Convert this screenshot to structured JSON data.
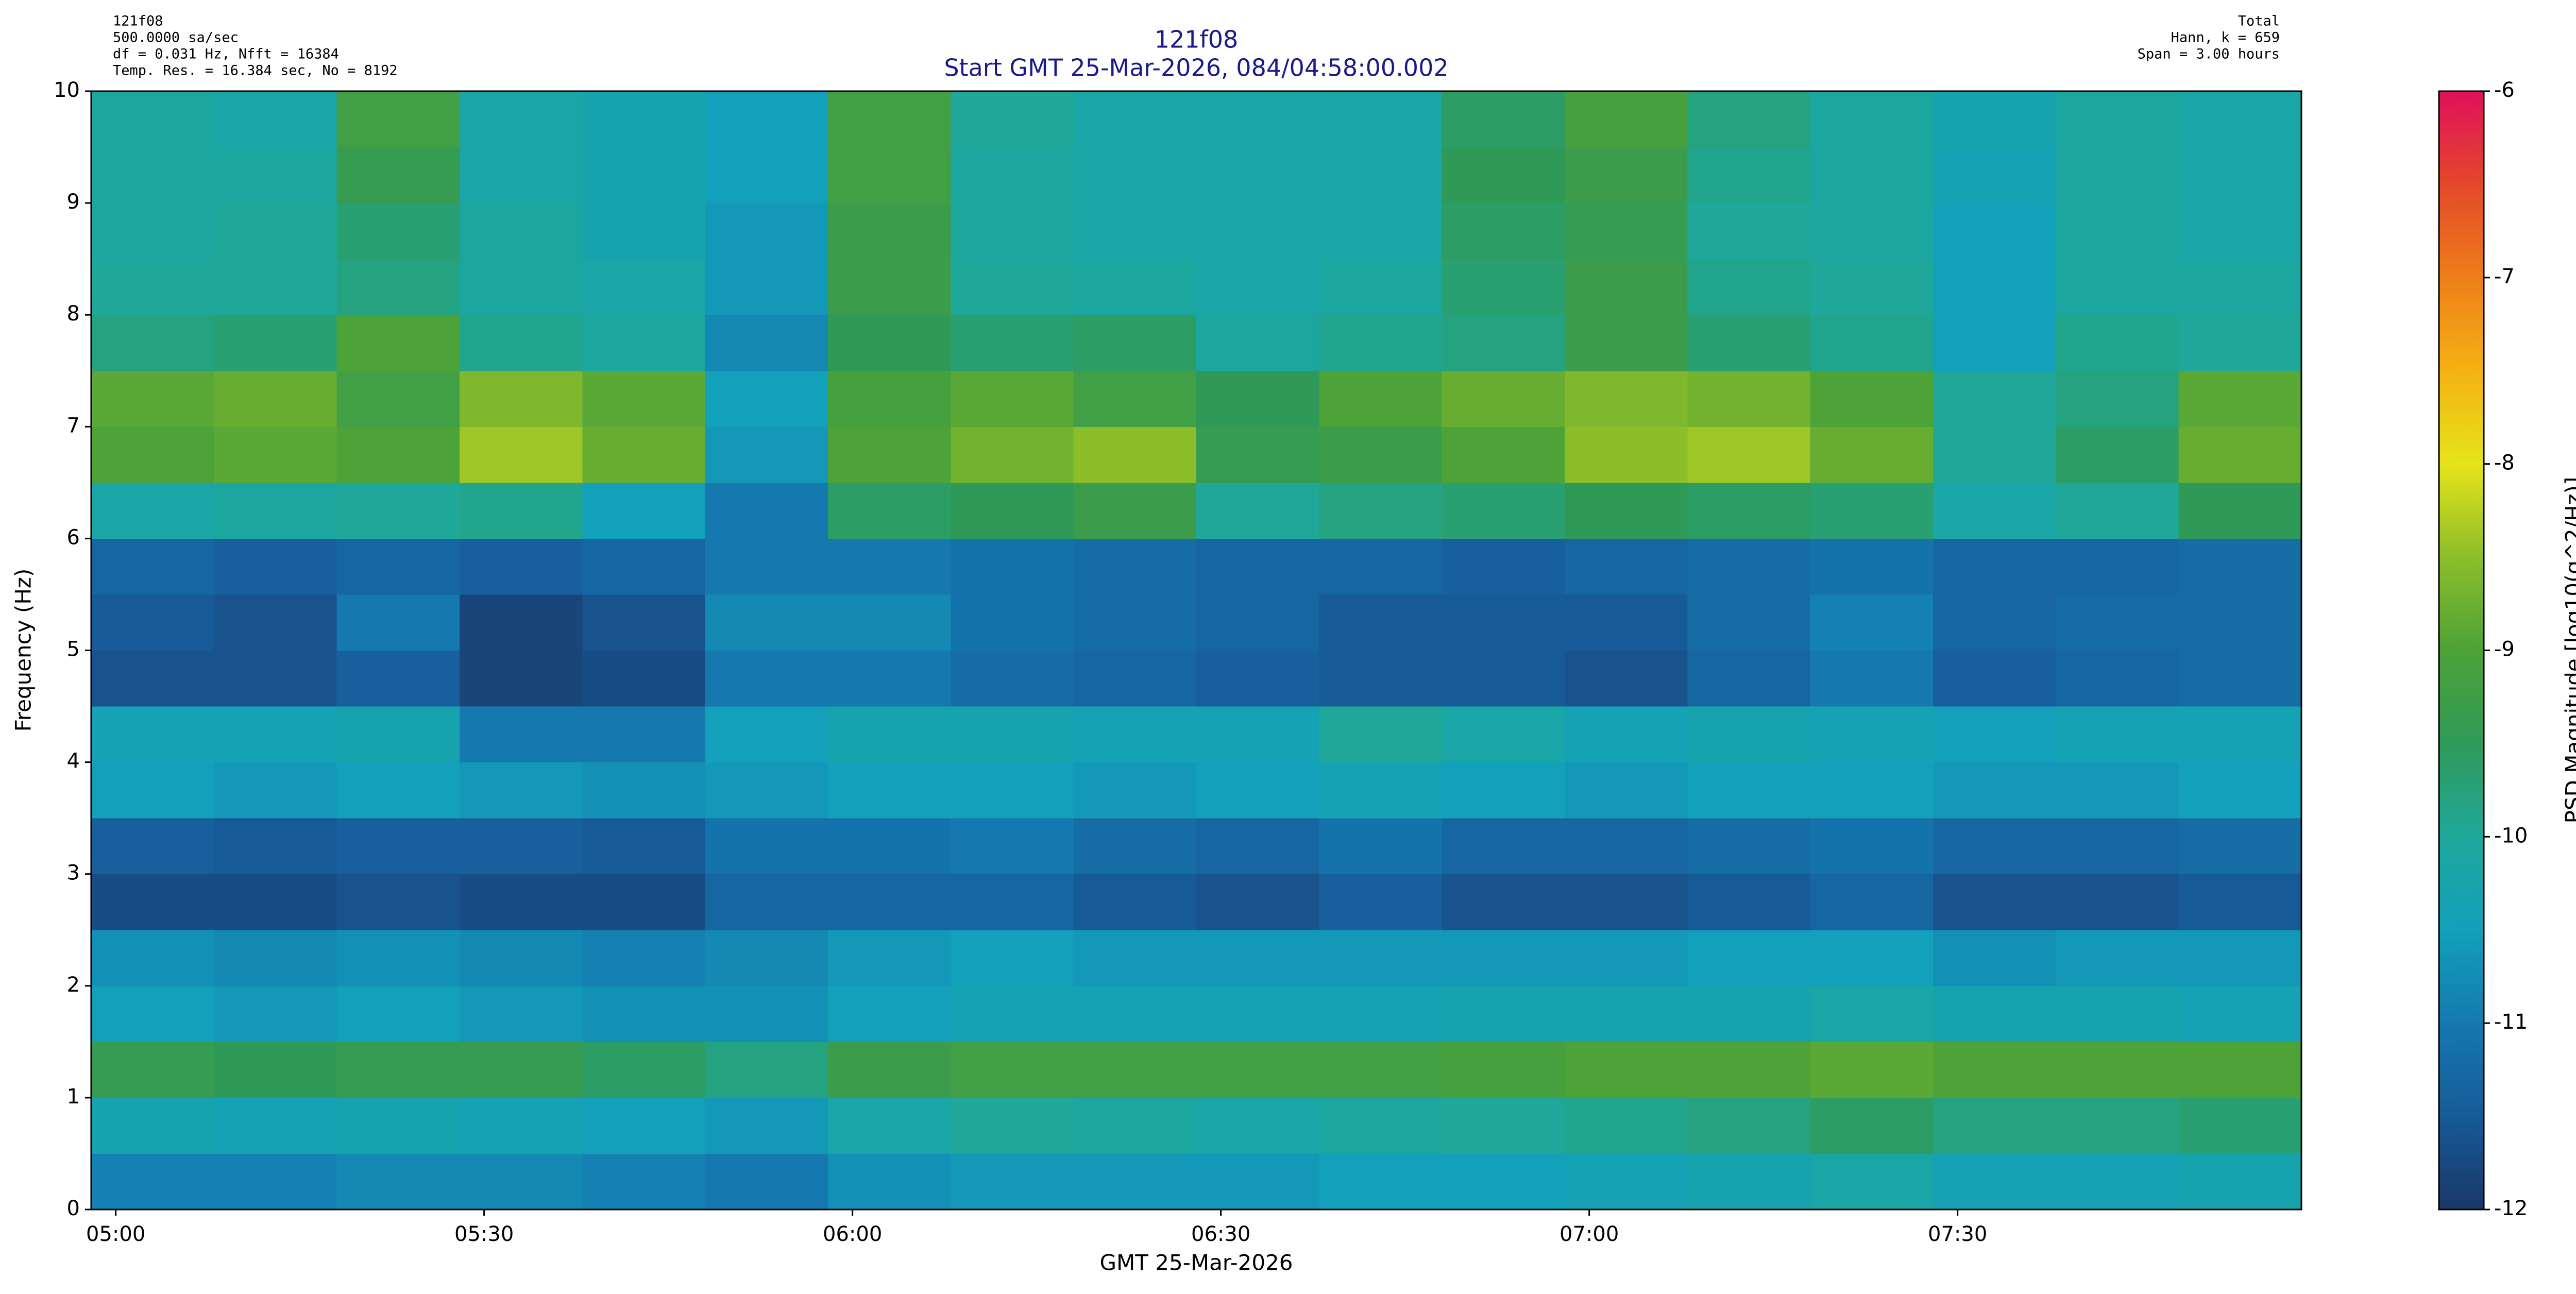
{
  "chart_data": {
    "type": "heatmap",
    "info_left": [
      "121f08",
      "500.0000 sa/sec",
      "df = 0.031 Hz,  Nfft = 16384",
      "Temp. Res. = 16.384 sec, No = 8192"
    ],
    "info_right": [
      "Total",
      "Hann, k = 659",
      "Span = 3.00 hours"
    ],
    "title": "121f08",
    "subtitle": "Start GMT 25-Mar-2026, 084/04:58:00.002",
    "xlabel": "GMT 25-Mar-2026",
    "ylabel": "Frequency (Hz)",
    "colorbar_label": "PSD Magnitude [log10(g^2/Hz)]",
    "xlim": [
      298,
      478
    ],
    "xticks": [
      {
        "value": 300,
        "label": "05:00"
      },
      {
        "value": 330,
        "label": "05:30"
      },
      {
        "value": 360,
        "label": "06:00"
      },
      {
        "value": 390,
        "label": "06:30"
      },
      {
        "value": 420,
        "label": "07:00"
      },
      {
        "value": 450,
        "label": "07:30"
      }
    ],
    "ylim": [
      0,
      10
    ],
    "yticks": [
      0,
      1,
      2,
      3,
      4,
      5,
      6,
      7,
      8,
      9,
      10
    ],
    "zlim": [
      -12,
      -6
    ],
    "zticks": [
      -12,
      -11,
      -10,
      -9,
      -8,
      -7,
      -6
    ],
    "colormap": [
      "#1a3768",
      "#175a98",
      "#1579b0",
      "#12a0ba",
      "#1fa89a",
      "#2f9a58",
      "#4da238",
      "#8cbe2a",
      "#e6e41a",
      "#f4b212",
      "#ee7e1a",
      "#e4482a",
      "#e0105c"
    ],
    "xbins": [
      298,
      308,
      318,
      328,
      338,
      348,
      358,
      368,
      378,
      388,
      398,
      408,
      418,
      428,
      438,
      448,
      458,
      468,
      478
    ],
    "ybins": [
      0,
      0.5,
      1,
      1.5,
      2,
      2.5,
      3,
      3.5,
      4,
      4.5,
      5,
      5.5,
      6,
      6.5,
      7,
      7.5,
      8,
      8.5,
      9,
      9.5,
      10
    ],
    "z": [
      [
        -10.9,
        -10.9,
        -10.8,
        -10.8,
        -10.9,
        -11.0,
        -10.7,
        -10.6,
        -10.6,
        -10.6,
        -10.5,
        -10.5,
        -10.4,
        -10.3,
        -10.2,
        -10.4,
        -10.4,
        -10.3
      ],
      [
        -10.3,
        -10.4,
        -10.3,
        -10.4,
        -10.5,
        -10.6,
        -10.2,
        -10.0,
        -10.1,
        -10.2,
        -10.1,
        -10.0,
        -9.9,
        -9.8,
        -9.6,
        -9.8,
        -9.8,
        -9.7
      ],
      [
        -9.4,
        -9.5,
        -9.4,
        -9.4,
        -9.6,
        -9.8,
        -9.3,
        -9.2,
        -9.2,
        -9.2,
        -9.2,
        -9.1,
        -9.0,
        -9.0,
        -8.9,
        -9.0,
        -9.0,
        -9.0
      ],
      [
        -10.5,
        -10.6,
        -10.5,
        -10.6,
        -10.7,
        -10.7,
        -10.5,
        -10.4,
        -10.4,
        -10.4,
        -10.4,
        -10.3,
        -10.3,
        -10.3,
        -10.2,
        -10.3,
        -10.3,
        -10.4
      ],
      [
        -10.7,
        -10.8,
        -10.7,
        -10.8,
        -10.9,
        -10.8,
        -10.6,
        -10.5,
        -10.6,
        -10.6,
        -10.6,
        -10.6,
        -10.6,
        -10.5,
        -10.5,
        -10.7,
        -10.6,
        -10.6
      ],
      [
        -11.7,
        -11.7,
        -11.6,
        -11.7,
        -11.7,
        -11.3,
        -11.3,
        -11.3,
        -11.5,
        -11.6,
        -11.4,
        -11.6,
        -11.6,
        -11.5,
        -11.3,
        -11.6,
        -11.6,
        -11.5
      ],
      [
        -11.4,
        -11.5,
        -11.4,
        -11.4,
        -11.5,
        -11.1,
        -11.1,
        -11.0,
        -11.2,
        -11.3,
        -11.1,
        -11.3,
        -11.3,
        -11.2,
        -11.1,
        -11.3,
        -11.3,
        -11.2
      ],
      [
        -10.5,
        -10.6,
        -10.5,
        -10.6,
        -10.7,
        -10.6,
        -10.5,
        -10.5,
        -10.6,
        -10.5,
        -10.4,
        -10.5,
        -10.6,
        -10.5,
        -10.5,
        -10.6,
        -10.6,
        -10.5
      ],
      [
        -10.4,
        -10.4,
        -10.3,
        -11.0,
        -11.0,
        -10.5,
        -10.3,
        -10.3,
        -10.4,
        -10.4,
        -10.0,
        -10.2,
        -10.4,
        -10.3,
        -10.4,
        -10.5,
        -10.4,
        -10.4
      ],
      [
        -11.6,
        -11.6,
        -11.4,
        -11.8,
        -11.7,
        -11.0,
        -11.0,
        -11.2,
        -11.3,
        -11.4,
        -11.5,
        -11.5,
        -11.6,
        -11.3,
        -11.0,
        -11.4,
        -11.3,
        -11.2
      ],
      [
        -11.5,
        -11.6,
        -11.0,
        -11.8,
        -11.6,
        -10.8,
        -10.8,
        -11.1,
        -11.2,
        -11.3,
        -11.5,
        -11.5,
        -11.5,
        -11.2,
        -10.9,
        -11.3,
        -11.2,
        -11.2
      ],
      [
        -11.3,
        -11.4,
        -11.3,
        -11.4,
        -11.3,
        -11.0,
        -11.0,
        -11.1,
        -11.2,
        -11.3,
        -11.3,
        -11.4,
        -11.3,
        -11.2,
        -11.1,
        -11.3,
        -11.3,
        -11.2
      ],
      [
        -10.2,
        -10.1,
        -10.0,
        -9.9,
        -10.5,
        -11.0,
        -9.6,
        -9.5,
        -9.3,
        -10.0,
        -9.8,
        -9.7,
        -9.5,
        -9.6,
        -9.7,
        -10.2,
        -10.0,
        -9.5
      ],
      [
        -9.0,
        -8.9,
        -9.0,
        -8.4,
        -8.8,
        -10.6,
        -9.0,
        -8.7,
        -8.5,
        -9.4,
        -9.3,
        -9.0,
        -8.5,
        -8.4,
        -8.8,
        -10.0,
        -9.6,
        -8.8
      ],
      [
        -8.9,
        -8.8,
        -9.2,
        -8.6,
        -8.9,
        -10.5,
        -9.1,
        -8.9,
        -9.2,
        -9.5,
        -9.0,
        -8.8,
        -8.6,
        -8.7,
        -9.0,
        -10.0,
        -9.8,
        -8.9
      ],
      [
        -9.8,
        -9.7,
        -9.0,
        -9.9,
        -10.1,
        -10.8,
        -9.5,
        -9.7,
        -9.6,
        -10.1,
        -9.9,
        -9.8,
        -9.3,
        -9.7,
        -9.9,
        -10.5,
        -9.9,
        -10.0
      ],
      [
        -10.0,
        -10.0,
        -9.8,
        -10.1,
        -10.2,
        -10.6,
        -9.3,
        -10.0,
        -10.1,
        -10.2,
        -10.1,
        -9.7,
        -9.3,
        -9.9,
        -10.0,
        -10.5,
        -10.1,
        -10.1
      ],
      [
        -10.1,
        -10.0,
        -9.7,
        -10.1,
        -10.3,
        -10.6,
        -9.3,
        -10.1,
        -10.2,
        -10.2,
        -10.2,
        -9.6,
        -9.4,
        -10.0,
        -10.1,
        -10.5,
        -10.1,
        -10.2
      ],
      [
        -10.1,
        -10.1,
        -9.4,
        -10.2,
        -10.3,
        -10.5,
        -9.2,
        -10.1,
        -10.2,
        -10.2,
        -10.2,
        -9.5,
        -9.3,
        -9.9,
        -10.1,
        -10.4,
        -10.1,
        -10.2
      ],
      [
        -10.1,
        -10.2,
        -9.2,
        -10.2,
        -10.3,
        -10.5,
        -9.2,
        -10.0,
        -10.2,
        -10.2,
        -10.2,
        -9.6,
        -9.1,
        -9.8,
        -10.1,
        -10.3,
        -10.1,
        -10.2
      ]
    ]
  }
}
